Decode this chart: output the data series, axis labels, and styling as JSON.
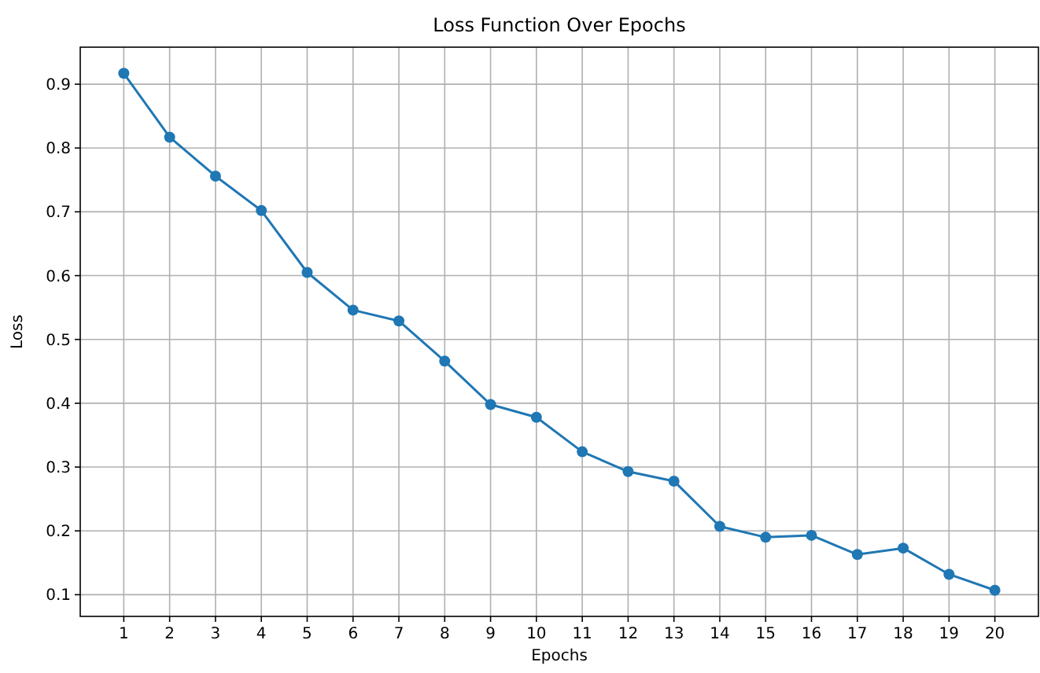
{
  "chart_data": {
    "type": "line",
    "title": "Loss Function Over Epochs",
    "xlabel": "Epochs",
    "ylabel": "Loss",
    "x": [
      1,
      2,
      3,
      4,
      5,
      6,
      7,
      8,
      9,
      10,
      11,
      12,
      13,
      14,
      15,
      16,
      17,
      18,
      19,
      20
    ],
    "series": [
      {
        "color": "#1f77b4",
        "values": [
          0.917,
          0.817,
          0.756,
          0.702,
          0.605,
          0.546,
          0.529,
          0.466,
          0.398,
          0.378,
          0.324,
          0.293,
          0.278,
          0.207,
          0.19,
          0.193,
          0.163,
          0.173,
          0.132,
          0.107
        ]
      }
    ],
    "xlim": [
      0.05,
      20.95
    ],
    "ylim": [
      0.066,
      0.958
    ],
    "xticks": [
      1,
      2,
      3,
      4,
      5,
      6,
      7,
      8,
      9,
      10,
      11,
      12,
      13,
      14,
      15,
      16,
      17,
      18,
      19,
      20
    ],
    "yticks": [
      0.1,
      0.2,
      0.3,
      0.4,
      0.5,
      0.6,
      0.7,
      0.8,
      0.9
    ],
    "grid": true,
    "marker": "circle",
    "line_style": "solid"
  }
}
